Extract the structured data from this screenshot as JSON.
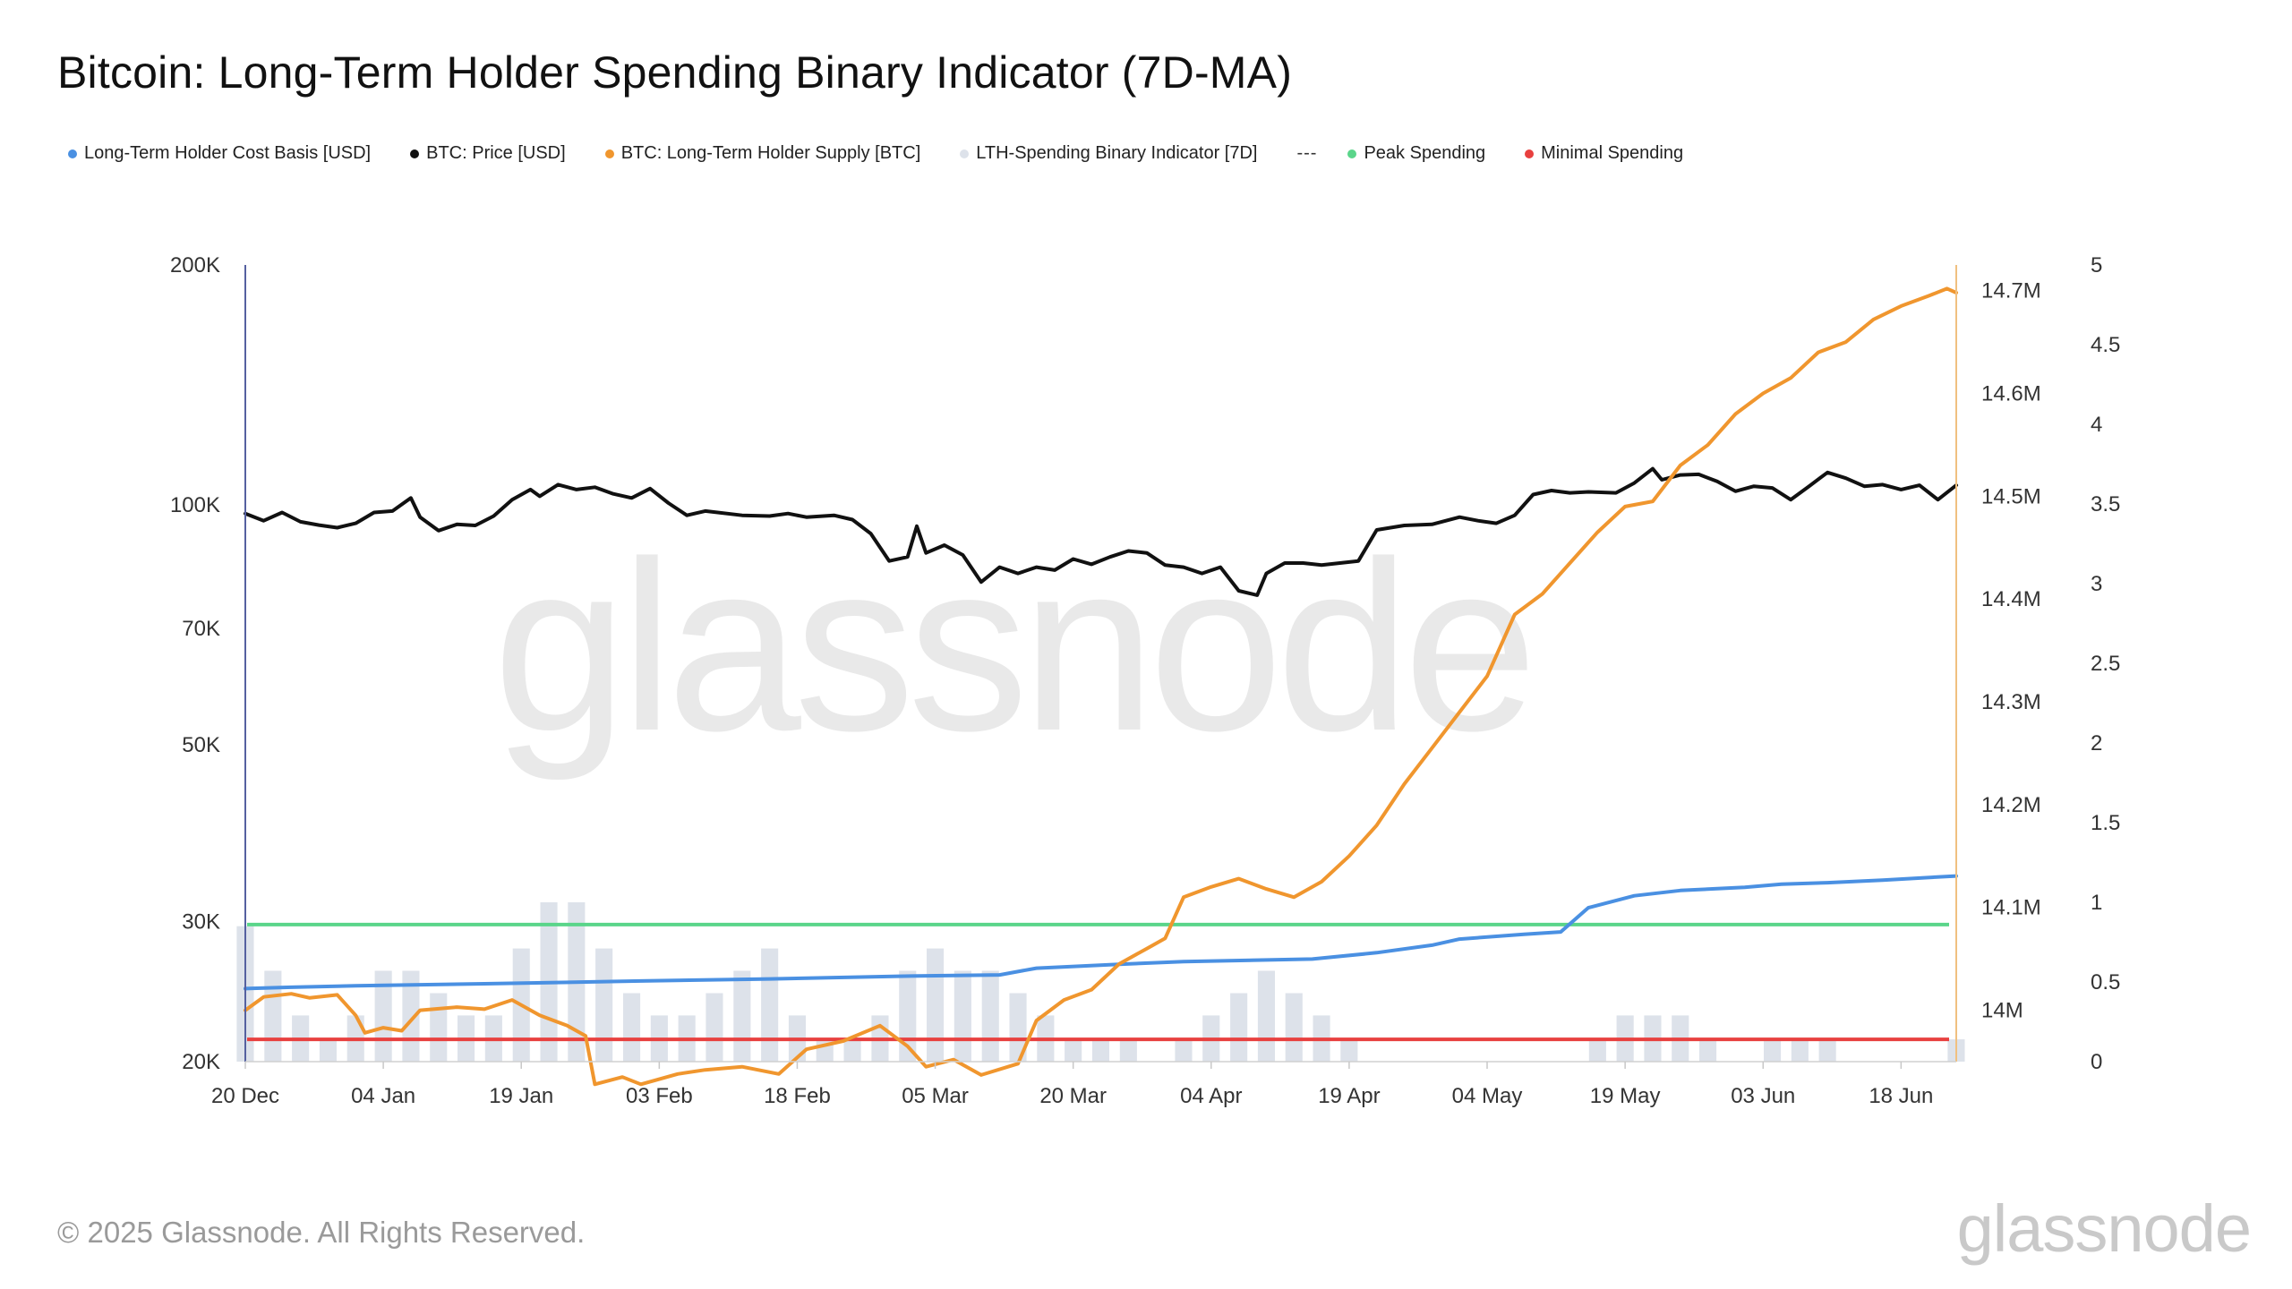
{
  "title": "Bitcoin: Long-Term Holder Spending Binary Indicator (7D-MA)",
  "footer": "© 2025 Glassnode. All Rights Reserved.",
  "brand": "glassnode",
  "watermark": "glassnode",
  "legend": [
    {
      "label": "Long-Term Holder Cost Basis [USD]",
      "color": "#4a90e2",
      "kind": "dot"
    },
    {
      "label": "BTC: Price [USD]",
      "color": "#111111",
      "kind": "dot"
    },
    {
      "label": "BTC: Long-Term Holder Supply [BTC]",
      "color": "#f0962e",
      "kind": "dot"
    },
    {
      "label": "LTH-Spending Binary Indicator [7D]",
      "color": "#dde2ea",
      "kind": "dot"
    },
    {
      "label": "---",
      "color": "#333333",
      "kind": "dash"
    },
    {
      "label": "Peak Spending",
      "color": "#5ad58a",
      "kind": "dot"
    },
    {
      "label": "Minimal Spending",
      "color": "#e8403f",
      "kind": "dot"
    }
  ],
  "chart_data": {
    "type": "line",
    "x_ticks": [
      "20 Dec",
      "04 Jan",
      "19 Jan",
      "03 Feb",
      "18 Feb",
      "05 Mar",
      "20 Mar",
      "04 Apr",
      "19 Apr",
      "04 May",
      "19 May",
      "03 Jun",
      "18 Jun"
    ],
    "x_range": [
      "2024-12-20",
      "2025-06-24"
    ],
    "y_left": {
      "scale": "log",
      "range": [
        20000,
        200000
      ],
      "tick_labels": [
        "200K",
        "100K",
        "70K",
        "50K",
        "30K",
        "20K"
      ],
      "tick_values": [
        200000,
        100000,
        70000,
        50000,
        30000,
        20000
      ]
    },
    "y_right_supply": {
      "range": [
        13950000,
        14725000
      ],
      "tick_labels": [
        "14.7M",
        "14.6M",
        "14.5M",
        "14.4M",
        "14.3M",
        "14.2M",
        "14.1M",
        "14M"
      ],
      "tick_values": [
        14700000,
        14600000,
        14500000,
        14400000,
        14300000,
        14200000,
        14100000,
        14000000
      ],
      "color": "#f0962e"
    },
    "y_right_indicator": {
      "range": [
        0,
        5
      ],
      "tick_labels": [
        "5",
        "4.5",
        "4",
        "3.5",
        "3",
        "2.5",
        "2",
        "1.5",
        "1",
        "0.5",
        "0"
      ],
      "tick_values": [
        5,
        4.5,
        4,
        3.5,
        3,
        2.5,
        2,
        1.5,
        1,
        0.5,
        0
      ]
    },
    "series": [
      {
        "name": "BTC: Price [USD]",
        "axis": "left",
        "color": "#111111",
        "points": [
          [
            "2024-12-20",
            97500
          ],
          [
            "2024-12-22",
            95500
          ],
          [
            "2024-12-24",
            97800
          ],
          [
            "2024-12-26",
            95200
          ],
          [
            "2024-12-28",
            94300
          ],
          [
            "2024-12-30",
            93600
          ],
          [
            "2025-01-01",
            94800
          ],
          [
            "2025-01-03",
            97800
          ],
          [
            "2025-01-05",
            98200
          ],
          [
            "2025-01-07",
            102000
          ],
          [
            "2025-01-08",
            96500
          ],
          [
            "2025-01-10",
            92800
          ],
          [
            "2025-01-12",
            94500
          ],
          [
            "2025-01-14",
            94200
          ],
          [
            "2025-01-16",
            96800
          ],
          [
            "2025-01-18",
            101500
          ],
          [
            "2025-01-20",
            104500
          ],
          [
            "2025-01-21",
            102500
          ],
          [
            "2025-01-23",
            106000
          ],
          [
            "2025-01-25",
            104500
          ],
          [
            "2025-01-27",
            105200
          ],
          [
            "2025-01-29",
            103200
          ],
          [
            "2025-01-31",
            102000
          ],
          [
            "2025-02-02",
            104800
          ],
          [
            "2025-02-04",
            100500
          ],
          [
            "2025-02-06",
            97000
          ],
          [
            "2025-02-08",
            98200
          ],
          [
            "2025-02-12",
            97000
          ],
          [
            "2025-02-15",
            96800
          ],
          [
            "2025-02-17",
            97500
          ],
          [
            "2025-02-19",
            96500
          ],
          [
            "2025-02-22",
            97000
          ],
          [
            "2025-02-24",
            95800
          ],
          [
            "2025-02-26",
            92000
          ],
          [
            "2025-02-28",
            85000
          ],
          [
            "2025-03-02",
            86000
          ],
          [
            "2025-03-03",
            94000
          ],
          [
            "2025-03-04",
            87000
          ],
          [
            "2025-03-06",
            89000
          ],
          [
            "2025-03-08",
            86500
          ],
          [
            "2025-03-10",
            80000
          ],
          [
            "2025-03-12",
            83500
          ],
          [
            "2025-03-14",
            82000
          ],
          [
            "2025-03-16",
            83500
          ],
          [
            "2025-03-18",
            82800
          ],
          [
            "2025-03-20",
            85500
          ],
          [
            "2025-03-22",
            84200
          ],
          [
            "2025-03-24",
            86000
          ],
          [
            "2025-03-26",
            87500
          ],
          [
            "2025-03-28",
            87000
          ],
          [
            "2025-03-30",
            84000
          ],
          [
            "2025-04-01",
            83500
          ],
          [
            "2025-04-03",
            82000
          ],
          [
            "2025-04-05",
            83500
          ],
          [
            "2025-04-07",
            78000
          ],
          [
            "2025-04-09",
            77000
          ],
          [
            "2025-04-10",
            82000
          ],
          [
            "2025-04-12",
            84500
          ],
          [
            "2025-04-14",
            84500
          ],
          [
            "2025-04-16",
            84000
          ],
          [
            "2025-04-18",
            84500
          ],
          [
            "2025-04-20",
            85000
          ],
          [
            "2025-04-22",
            93000
          ],
          [
            "2025-04-25",
            94200
          ],
          [
            "2025-04-28",
            94500
          ],
          [
            "2025-05-01",
            96500
          ],
          [
            "2025-05-03",
            95500
          ],
          [
            "2025-05-05",
            94800
          ],
          [
            "2025-05-07",
            97000
          ],
          [
            "2025-05-09",
            103000
          ],
          [
            "2025-05-11",
            104200
          ],
          [
            "2025-05-13",
            103500
          ],
          [
            "2025-05-15",
            103800
          ],
          [
            "2025-05-18",
            103500
          ],
          [
            "2025-05-20",
            106500
          ],
          [
            "2025-05-22",
            111000
          ],
          [
            "2025-05-23",
            107500
          ],
          [
            "2025-05-25",
            109000
          ],
          [
            "2025-05-27",
            109200
          ],
          [
            "2025-05-29",
            107000
          ],
          [
            "2025-05-31",
            104000
          ],
          [
            "2025-06-02",
            105500
          ],
          [
            "2025-06-04",
            105000
          ],
          [
            "2025-06-06",
            101500
          ],
          [
            "2025-06-08",
            105500
          ],
          [
            "2025-06-10",
            109800
          ],
          [
            "2025-06-12",
            108000
          ],
          [
            "2025-06-14",
            105500
          ],
          [
            "2025-06-16",
            106000
          ],
          [
            "2025-06-18",
            104500
          ],
          [
            "2025-06-20",
            105800
          ],
          [
            "2025-06-22",
            101500
          ],
          [
            "2025-06-24",
            105800
          ]
        ]
      },
      {
        "name": "Long-Term Holder Cost Basis [USD]",
        "axis": "left",
        "color": "#4a90e2",
        "points": [
          [
            "2024-12-20",
            24700
          ],
          [
            "2024-12-25",
            24800
          ],
          [
            "2025-01-01",
            24900
          ],
          [
            "2025-01-15",
            25050
          ],
          [
            "2025-02-01",
            25250
          ],
          [
            "2025-02-15",
            25400
          ],
          [
            "2025-03-01",
            25600
          ],
          [
            "2025-03-12",
            25700
          ],
          [
            "2025-03-16",
            26200
          ],
          [
            "2025-03-25",
            26500
          ],
          [
            "2025-04-01",
            26700
          ],
          [
            "2025-04-15",
            26900
          ],
          [
            "2025-04-22",
            27400
          ],
          [
            "2025-04-28",
            28000
          ],
          [
            "2025-05-01",
            28500
          ],
          [
            "2025-05-08",
            28900
          ],
          [
            "2025-05-12",
            29100
          ],
          [
            "2025-05-15",
            31200
          ],
          [
            "2025-05-20",
            32300
          ],
          [
            "2025-05-25",
            32800
          ],
          [
            "2025-06-01",
            33100
          ],
          [
            "2025-06-05",
            33400
          ],
          [
            "2025-06-10",
            33550
          ],
          [
            "2025-06-16",
            33800
          ],
          [
            "2025-06-24",
            34200
          ]
        ]
      },
      {
        "name": "BTC: Long-Term Holder Supply [BTC]",
        "axis": "right_supply",
        "color": "#f0962e",
        "points": [
          [
            "2024-12-20",
            14000000
          ],
          [
            "2024-12-22",
            14013000
          ],
          [
            "2024-12-25",
            14016000
          ],
          [
            "2024-12-27",
            14012000
          ],
          [
            "2024-12-30",
            14015000
          ],
          [
            "2025-01-01",
            13995000
          ],
          [
            "2025-01-02",
            13978000
          ],
          [
            "2025-01-04",
            13983000
          ],
          [
            "2025-01-06",
            13980000
          ],
          [
            "2025-01-08",
            14000000
          ],
          [
            "2025-01-12",
            14003000
          ],
          [
            "2025-01-15",
            14001000
          ],
          [
            "2025-01-18",
            14010000
          ],
          [
            "2025-01-21",
            13995000
          ],
          [
            "2025-01-24",
            13985000
          ],
          [
            "2025-01-26",
            13975000
          ],
          [
            "2025-01-27",
            13928000
          ],
          [
            "2025-01-30",
            13935000
          ],
          [
            "2025-02-01",
            13928000
          ],
          [
            "2025-02-05",
            13938000
          ],
          [
            "2025-02-08",
            13942000
          ],
          [
            "2025-02-12",
            13945000
          ],
          [
            "2025-02-16",
            13938000
          ],
          [
            "2025-02-19",
            13962000
          ],
          [
            "2025-02-23",
            13970000
          ],
          [
            "2025-02-27",
            13985000
          ],
          [
            "2025-03-02",
            13965000
          ],
          [
            "2025-03-04",
            13945000
          ],
          [
            "2025-03-07",
            13952000
          ],
          [
            "2025-03-10",
            13937000
          ],
          [
            "2025-03-14",
            13948000
          ],
          [
            "2025-03-16",
            13990000
          ],
          [
            "2025-03-19",
            14010000
          ],
          [
            "2025-03-22",
            14020000
          ],
          [
            "2025-03-25",
            14045000
          ],
          [
            "2025-03-28",
            14060000
          ],
          [
            "2025-03-30",
            14070000
          ],
          [
            "2025-04-01",
            14110000
          ],
          [
            "2025-04-04",
            14120000
          ],
          [
            "2025-04-07",
            14128000
          ],
          [
            "2025-04-10",
            14118000
          ],
          [
            "2025-04-13",
            14110000
          ],
          [
            "2025-04-16",
            14125000
          ],
          [
            "2025-04-19",
            14150000
          ],
          [
            "2025-04-22",
            14180000
          ],
          [
            "2025-04-25",
            14220000
          ],
          [
            "2025-04-28",
            14255000
          ],
          [
            "2025-05-01",
            14290000
          ],
          [
            "2025-05-04",
            14325000
          ],
          [
            "2025-05-07",
            14385000
          ],
          [
            "2025-05-10",
            14405000
          ],
          [
            "2025-05-13",
            14435000
          ],
          [
            "2025-05-16",
            14465000
          ],
          [
            "2025-05-19",
            14490000
          ],
          [
            "2025-05-22",
            14495000
          ],
          [
            "2025-05-25",
            14530000
          ],
          [
            "2025-05-28",
            14550000
          ],
          [
            "2025-05-31",
            14580000
          ],
          [
            "2025-06-03",
            14600000
          ],
          [
            "2025-06-06",
            14615000
          ],
          [
            "2025-06-09",
            14640000
          ],
          [
            "2025-06-12",
            14650000
          ],
          [
            "2025-06-15",
            14672000
          ],
          [
            "2025-06-18",
            14685000
          ],
          [
            "2025-06-21",
            14695000
          ],
          [
            "2025-06-23",
            14702000
          ],
          [
            "2025-06-24",
            14698000
          ]
        ]
      },
      {
        "name": "LTH-Spending Binary Indicator [7D]",
        "axis": "right_indicator",
        "color": "#dde2ea",
        "kind": "bars",
        "points": [
          [
            "2024-12-20",
            0.85
          ],
          [
            "2024-12-23",
            0.57
          ],
          [
            "2024-12-26",
            0.29
          ],
          [
            "2024-12-29",
            0.14
          ],
          [
            "2025-01-01",
            0.29
          ],
          [
            "2025-01-04",
            0.57
          ],
          [
            "2025-01-07",
            0.57
          ],
          [
            "2025-01-10",
            0.43
          ],
          [
            "2025-01-13",
            0.29
          ],
          [
            "2025-01-16",
            0.29
          ],
          [
            "2025-01-19",
            0.71
          ],
          [
            "2025-01-22",
            1.0
          ],
          [
            "2025-01-25",
            1.0
          ],
          [
            "2025-01-28",
            0.71
          ],
          [
            "2025-01-31",
            0.43
          ],
          [
            "2025-02-03",
            0.29
          ],
          [
            "2025-02-06",
            0.29
          ],
          [
            "2025-02-09",
            0.43
          ],
          [
            "2025-02-12",
            0.57
          ],
          [
            "2025-02-15",
            0.71
          ],
          [
            "2025-02-18",
            0.29
          ],
          [
            "2025-02-21",
            0.14
          ],
          [
            "2025-02-24",
            0.14
          ],
          [
            "2025-02-27",
            0.29
          ],
          [
            "2025-03-02",
            0.57
          ],
          [
            "2025-03-05",
            0.71
          ],
          [
            "2025-03-08",
            0.57
          ],
          [
            "2025-03-11",
            0.57
          ],
          [
            "2025-03-14",
            0.43
          ],
          [
            "2025-03-17",
            0.29
          ],
          [
            "2025-03-20",
            0.14
          ],
          [
            "2025-03-23",
            0.14
          ],
          [
            "2025-03-26",
            0.14
          ],
          [
            "2025-04-01",
            0.14
          ],
          [
            "2025-04-04",
            0.29
          ],
          [
            "2025-04-07",
            0.43
          ],
          [
            "2025-04-10",
            0.57
          ],
          [
            "2025-04-13",
            0.43
          ],
          [
            "2025-04-16",
            0.29
          ],
          [
            "2025-04-19",
            0.14
          ],
          [
            "2025-05-16",
            0.14
          ],
          [
            "2025-05-19",
            0.29
          ],
          [
            "2025-05-22",
            0.29
          ],
          [
            "2025-05-25",
            0.29
          ],
          [
            "2025-05-28",
            0.14
          ],
          [
            "2025-06-04",
            0.14
          ],
          [
            "2025-06-07",
            0.14
          ],
          [
            "2025-06-10",
            0.14
          ],
          [
            "2025-06-24",
            0.14
          ]
        ]
      },
      {
        "name": "Peak Spending",
        "axis": "right_indicator",
        "color": "#5ad58a",
        "kind": "hline",
        "value": 0.86
      },
      {
        "name": "Minimal Spending",
        "axis": "right_indicator",
        "color": "#e8403f",
        "kind": "hline",
        "value": 0.14
      }
    ]
  }
}
